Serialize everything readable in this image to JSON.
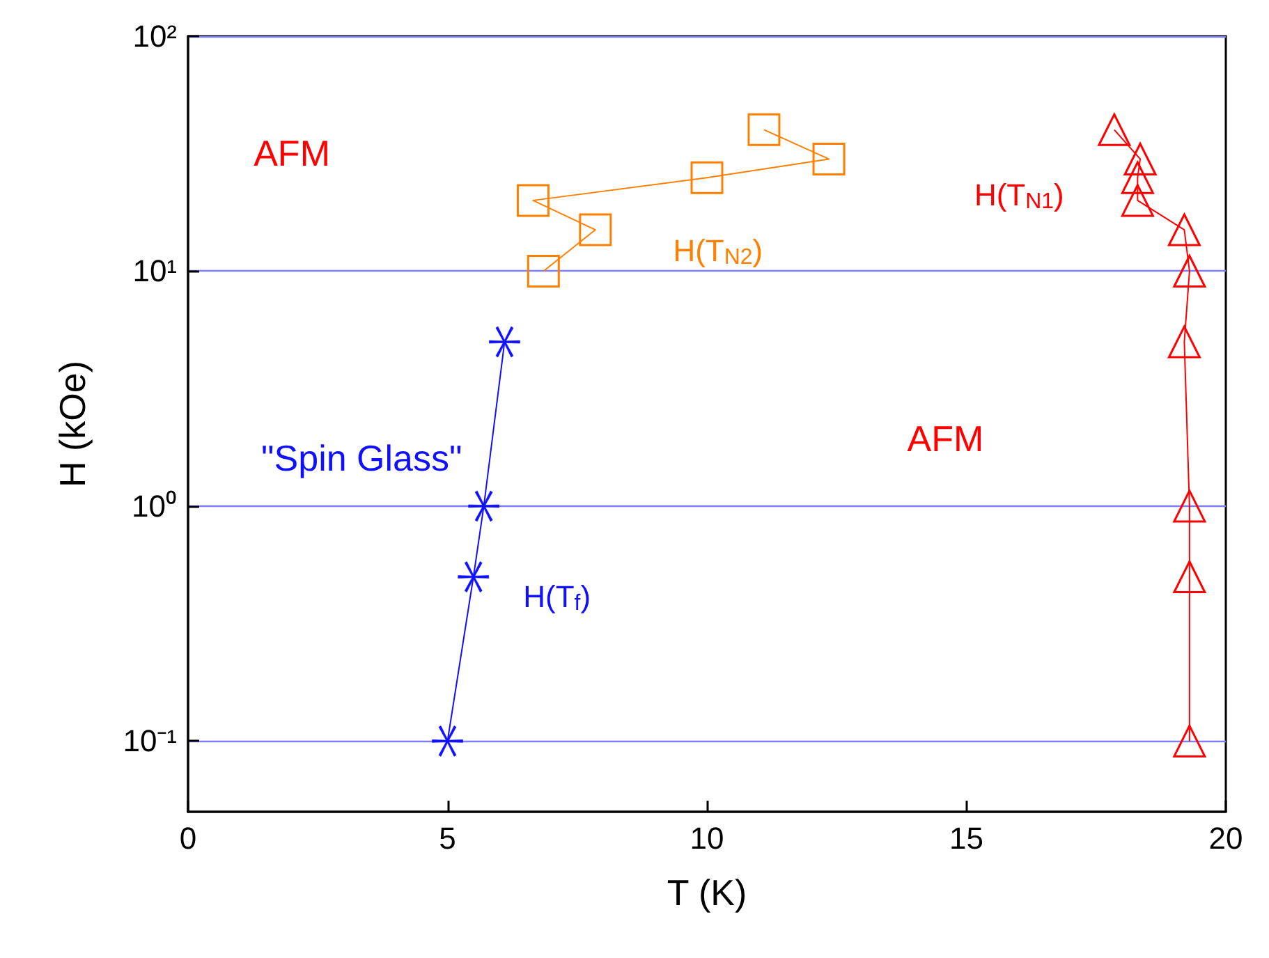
{
  "chart_data": {
    "type": "line",
    "xlabel": "T (K)",
    "ylabel": "H (kOe)",
    "log": "y",
    "xlim": [
      0,
      20
    ],
    "xticks": [
      0,
      5,
      10,
      15,
      20
    ],
    "ylim": [
      0.05,
      100
    ],
    "yticks": [
      {
        "value": 0.1,
        "label": "10⁻¹"
      },
      {
        "value": 1,
        "label": "10⁰"
      },
      {
        "value": 10,
        "label": "10¹"
      },
      {
        "value": 100,
        "label": "10²"
      }
    ],
    "grid": "y",
    "series": [
      {
        "name": "H(T$_{f}$)",
        "color": "#1010ff",
        "marker": "cross",
        "x": [
          5.0,
          5.5,
          5.7,
          6.1
        ],
        "values": [
          0.1,
          0.5,
          1,
          5
        ]
      },
      {
        "name": "H(T$_{N2}$)",
        "color": "#ff8000",
        "marker": "square",
        "x": [
          6.85,
          7.85,
          6.65,
          10.0,
          12.35,
          11.1
        ],
        "values": [
          10,
          15,
          20,
          25,
          30,
          40
        ]
      },
      {
        "name": "H(T$_{N1}$)",
        "color": "#ff0000",
        "marker": "triangle",
        "x": [
          19.3,
          19.3,
          19.3,
          19.2,
          19.3,
          19.2,
          18.3,
          18.3,
          18.35,
          17.85
        ],
        "values": [
          0.1,
          0.5,
          1,
          5,
          10,
          15,
          20,
          25,
          30,
          40
        ]
      }
    ],
    "annotations": [
      "AFM",
      "AFM",
      "\"Spin Glass\""
    ]
  }
}
